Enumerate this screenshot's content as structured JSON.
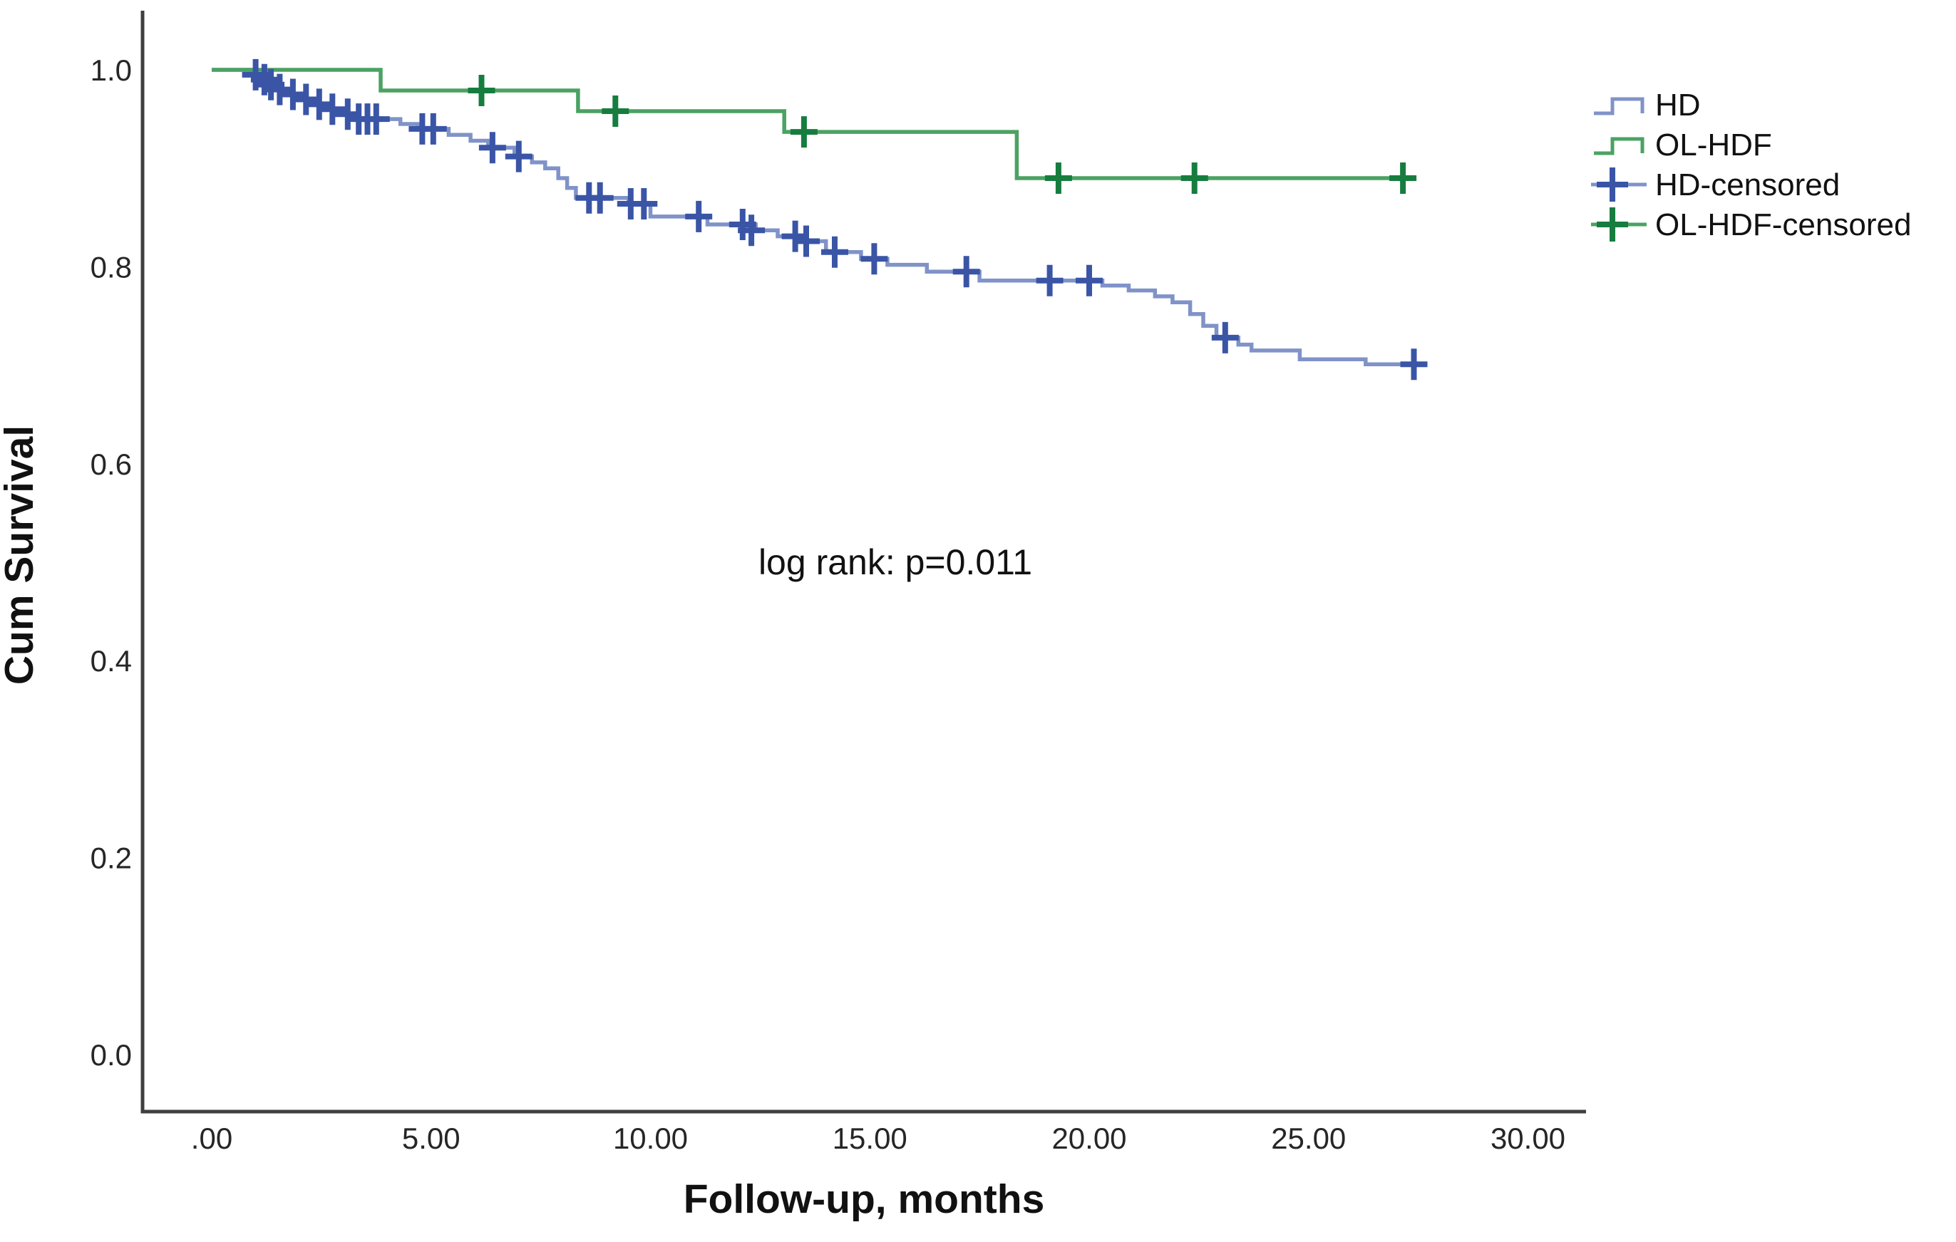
{
  "chart_data": {
    "type": "line",
    "subtype": "kaplan-meier-step",
    "title": "",
    "xlabel": "Follow-up, months",
    "ylabel": "Cum Survival",
    "annotation": "log rank: p=0.011",
    "xlim": [
      0,
      30
    ],
    "ylim": [
      0.0,
      1.0
    ],
    "grid": false,
    "x_ticks": [
      {
        "label": ".00",
        "value": 0
      },
      {
        "label": "5.00",
        "value": 5
      },
      {
        "label": "10.00",
        "value": 10
      },
      {
        "label": "15.00",
        "value": 15
      },
      {
        "label": "20.00",
        "value": 20
      },
      {
        "label": "25.00",
        "value": 25
      },
      {
        "label": "30.00",
        "value": 30
      }
    ],
    "y_ticks": [
      {
        "label": "1.0",
        "value": 1.0
      },
      {
        "label": "0.8",
        "value": 0.8
      },
      {
        "label": "0.6",
        "value": 0.6
      },
      {
        "label": "0.4",
        "value": 0.4
      },
      {
        "label": "0.2",
        "value": 0.2
      },
      {
        "label": "0.0",
        "value": 0.0
      }
    ],
    "series": [
      {
        "name": "HD",
        "line_color": "#8093c8",
        "censor_color": "#3a55a6",
        "end_month": 27.5,
        "steps": [
          [
            0.0,
            1.0
          ],
          [
            0.9,
            0.995
          ],
          [
            1.1,
            0.99
          ],
          [
            1.3,
            0.985
          ],
          [
            1.5,
            0.98
          ],
          [
            1.8,
            0.975
          ],
          [
            2.1,
            0.97
          ],
          [
            2.4,
            0.965
          ],
          [
            2.7,
            0.96
          ],
          [
            3.0,
            0.955
          ],
          [
            3.3,
            0.95
          ],
          [
            4.3,
            0.945
          ],
          [
            4.7,
            0.94
          ],
          [
            5.4,
            0.934
          ],
          [
            5.9,
            0.928
          ],
          [
            6.3,
            0.921
          ],
          [
            6.9,
            0.912
          ],
          [
            7.3,
            0.906
          ],
          [
            7.6,
            0.9
          ],
          [
            7.9,
            0.89
          ],
          [
            8.1,
            0.88
          ],
          [
            8.3,
            0.87
          ],
          [
            9.5,
            0.864
          ],
          [
            10.0,
            0.851
          ],
          [
            11.3,
            0.843
          ],
          [
            12.4,
            0.837
          ],
          [
            12.9,
            0.831
          ],
          [
            13.4,
            0.826
          ],
          [
            14.0,
            0.815
          ],
          [
            14.8,
            0.808
          ],
          [
            15.4,
            0.802
          ],
          [
            16.3,
            0.795
          ],
          [
            17.5,
            0.786
          ],
          [
            20.3,
            0.781
          ],
          [
            20.9,
            0.776
          ],
          [
            21.5,
            0.77
          ],
          [
            21.9,
            0.764
          ],
          [
            22.3,
            0.752
          ],
          [
            22.6,
            0.74
          ],
          [
            22.9,
            0.728
          ],
          [
            23.4,
            0.721
          ],
          [
            23.7,
            0.715
          ],
          [
            24.8,
            0.706
          ],
          [
            26.3,
            0.701
          ]
        ],
        "censored": [
          [
            1.0,
            0.995
          ],
          [
            1.2,
            0.99
          ],
          [
            1.35,
            0.985
          ],
          [
            1.55,
            0.98
          ],
          [
            1.85,
            0.975
          ],
          [
            2.15,
            0.97
          ],
          [
            2.45,
            0.965
          ],
          [
            2.75,
            0.96
          ],
          [
            3.1,
            0.955
          ],
          [
            3.35,
            0.95
          ],
          [
            3.55,
            0.95
          ],
          [
            3.75,
            0.95
          ],
          [
            4.8,
            0.94
          ],
          [
            5.05,
            0.94
          ],
          [
            6.4,
            0.921
          ],
          [
            7.0,
            0.912
          ],
          [
            8.6,
            0.87
          ],
          [
            8.85,
            0.87
          ],
          [
            9.55,
            0.864
          ],
          [
            9.85,
            0.864
          ],
          [
            11.1,
            0.851
          ],
          [
            12.1,
            0.843
          ],
          [
            12.3,
            0.837
          ],
          [
            13.3,
            0.831
          ],
          [
            13.55,
            0.826
          ],
          [
            14.2,
            0.815
          ],
          [
            15.1,
            0.808
          ],
          [
            17.2,
            0.795
          ],
          [
            19.1,
            0.786
          ],
          [
            20.0,
            0.786
          ],
          [
            23.1,
            0.728
          ],
          [
            27.4,
            0.701
          ]
        ]
      },
      {
        "name": "OL-HDF",
        "line_color": "#4ba263",
        "censor_color": "#167d3f",
        "end_month": 27.4,
        "steps": [
          [
            0.0,
            1.0
          ],
          [
            3.85,
            0.979
          ],
          [
            8.35,
            0.958
          ],
          [
            13.05,
            0.937
          ],
          [
            18.35,
            0.89
          ]
        ],
        "censored": [
          [
            6.15,
            0.979
          ],
          [
            9.2,
            0.958
          ],
          [
            13.5,
            0.937
          ],
          [
            19.3,
            0.89
          ],
          [
            22.4,
            0.89
          ],
          [
            27.15,
            0.89
          ]
        ]
      }
    ],
    "legend": {
      "position": "top-right",
      "entries": [
        {
          "label": "HD",
          "glyph": "step-line",
          "series": 0
        },
        {
          "label": "OL-HDF",
          "glyph": "step-line",
          "series": 1
        },
        {
          "label": "HD-censored",
          "glyph": "censor",
          "series": 0
        },
        {
          "label": "OL-HDF-censored",
          "glyph": "censor",
          "series": 1
        }
      ]
    }
  },
  "colors": {
    "background": "#ffffff",
    "axis": "#3f3f3f",
    "tick_text": "#262626",
    "label_text": "#111111"
  }
}
